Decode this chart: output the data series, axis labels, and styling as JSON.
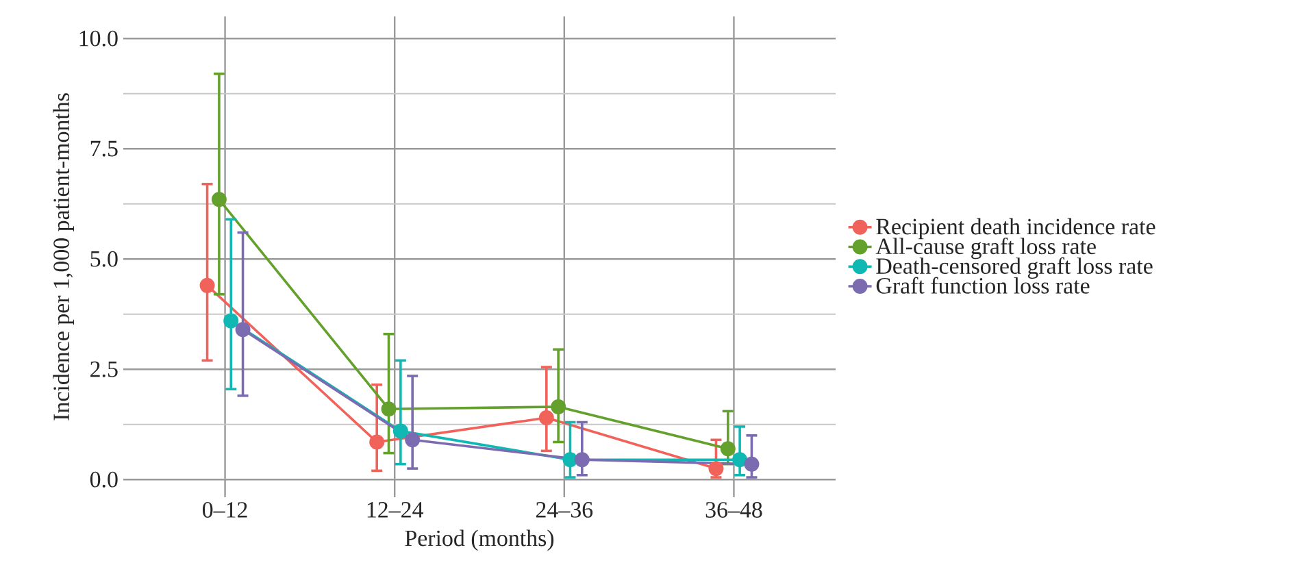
{
  "chart_data": {
    "type": "line",
    "xlabel": "Period (months)",
    "ylabel": "Incidence per 1,000 patient-months",
    "categories": [
      "0–12",
      "12–24",
      "24–36",
      "36–48"
    ],
    "series": [
      {
        "name": "Recipient death incidence rate",
        "color": "#f0625a",
        "values": [
          4.4,
          0.85,
          1.4,
          0.25
        ],
        "errors": [
          [
            2.7,
            6.7
          ],
          [
            0.2,
            2.15
          ],
          [
            0.65,
            2.55
          ],
          [
            0.05,
            0.9
          ]
        ]
      },
      {
        "name": "All-cause graft loss rate",
        "color": "#64a02c",
        "values": [
          6.35,
          1.6,
          1.65,
          0.7
        ],
        "errors": [
          [
            4.2,
            9.2
          ],
          [
            0.6,
            3.3
          ],
          [
            0.85,
            2.95
          ],
          [
            0.35,
            1.55
          ]
        ]
      },
      {
        "name": "Death-censored graft loss rate",
        "color": "#10b8b4",
        "values": [
          3.6,
          1.1,
          0.45,
          0.45
        ],
        "errors": [
          [
            2.05,
            5.9
          ],
          [
            0.35,
            2.7
          ],
          [
            0.05,
            1.3
          ],
          [
            0.1,
            1.2
          ]
        ]
      },
      {
        "name": "Graft function loss rate",
        "color": "#7b6bb0",
        "values": [
          3.4,
          0.9,
          0.45,
          0.35
        ],
        "errors": [
          [
            1.9,
            5.6
          ],
          [
            0.25,
            2.35
          ],
          [
            0.1,
            1.3
          ],
          [
            0.05,
            1.0
          ]
        ]
      }
    ],
    "ylim": [
      -0.4,
      10.5
    ],
    "yticks": [
      {
        "value": 0,
        "label": "0.0"
      },
      {
        "value": 2.5,
        "label": "2.5"
      },
      {
        "value": 5,
        "label": "5.0"
      },
      {
        "value": 7.5,
        "label": "7.5"
      },
      {
        "value": 10,
        "label": "10.0"
      }
    ],
    "grid": true,
    "legend": "right",
    "marker": "circle",
    "line_style": "solid"
  }
}
